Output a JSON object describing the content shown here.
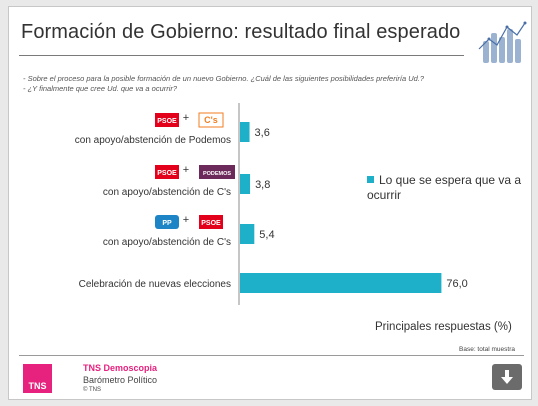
{
  "header": {
    "title": "Formación de Gobierno: resultado final esperado",
    "question_1": "- Sobre el proceso para la posible formación de un nuevo Gobierno. ¿Cuál de las siguientes posibilidades preferiría Ud.?",
    "question_2": "- ¿Y finalmente que cree Ud. que va a ocurrir?"
  },
  "chart_data": {
    "type": "bar",
    "orientation": "horizontal",
    "categories": [
      {
        "logos": [
          {
            "text": "PSOE",
            "style": "psoe"
          },
          {
            "text": "C's",
            "style": "cs"
          }
        ],
        "plus": "+",
        "label": "con apoyo/abstención de Podemos"
      },
      {
        "logos": [
          {
            "text": "PSOE",
            "style": "psoe"
          },
          {
            "text": "PODEMOS",
            "style": "podemos"
          }
        ],
        "plus": "+",
        "label": "con apoyo/abstención de C's"
      },
      {
        "logos": [
          {
            "text": "PP",
            "style": "pp"
          },
          {
            "text": "PSOE",
            "style": "psoe"
          }
        ],
        "plus": "+",
        "label": "con apoyo/abstención de C's"
      },
      {
        "logos": [],
        "plus": "",
        "label": "Celebración de nuevas elecciones"
      }
    ],
    "series": [
      {
        "name": "Lo que se espera que va a ocurrir",
        "values": [
          3.6,
          3.8,
          5.4,
          76.0
        ],
        "value_labels": [
          "3,6",
          "3,8",
          "5,4",
          "76,0"
        ],
        "color": "#1fb0c9"
      }
    ],
    "xlim": [
      0,
      100
    ],
    "grid": false,
    "legend_position": "right",
    "subtitle": "Principales respuestas (%)",
    "base_note": "Base: total muestra"
  },
  "footer": {
    "logo_text": "TNS",
    "brand": "TNS Demoscopia",
    "product": "Barómetro Político",
    "copyright": "© TNS"
  },
  "colors": {
    "bar": "#1fb0c9",
    "psoe": "#e3001b",
    "cs": "#f07e22",
    "podemos": "#6b2a59",
    "pp": "#1d84c6",
    "brand_pink": "#e6217e"
  },
  "icons": {
    "header_art": "raised-hands-icon",
    "download": "download-arrow-icon"
  }
}
